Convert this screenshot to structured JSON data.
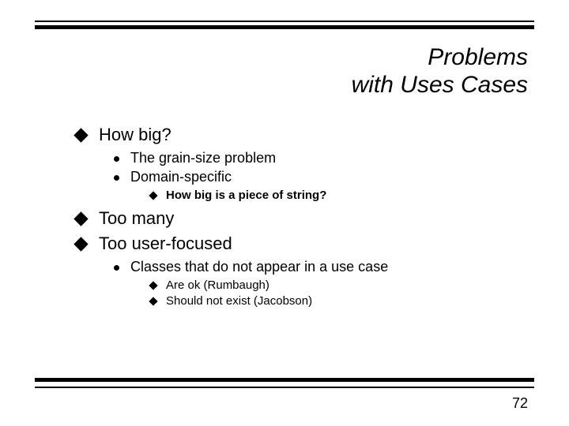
{
  "title": {
    "line1": "Problems",
    "line2": "with Uses Cases"
  },
  "bullets": {
    "b1": "How big?",
    "b1_1": "The grain-size problem",
    "b1_2": "Domain-specific",
    "b1_2_1": "How big is a piece of string?",
    "b2": "Too many",
    "b3": "Too user-focused",
    "b3_1": "Classes that do not appear in a use case",
    "b3_1_1": "Are ok  (Rumbaugh)",
    "b3_1_2": "Should not exist (Jacobson)"
  },
  "page_number": "72",
  "colors": {
    "rule": "#000000",
    "text": "#000000",
    "background": "#ffffff"
  },
  "fonts": {
    "title_size": 30,
    "lvl1_size": 22,
    "lvl2_size": 18,
    "lvl3_size": 15
  }
}
